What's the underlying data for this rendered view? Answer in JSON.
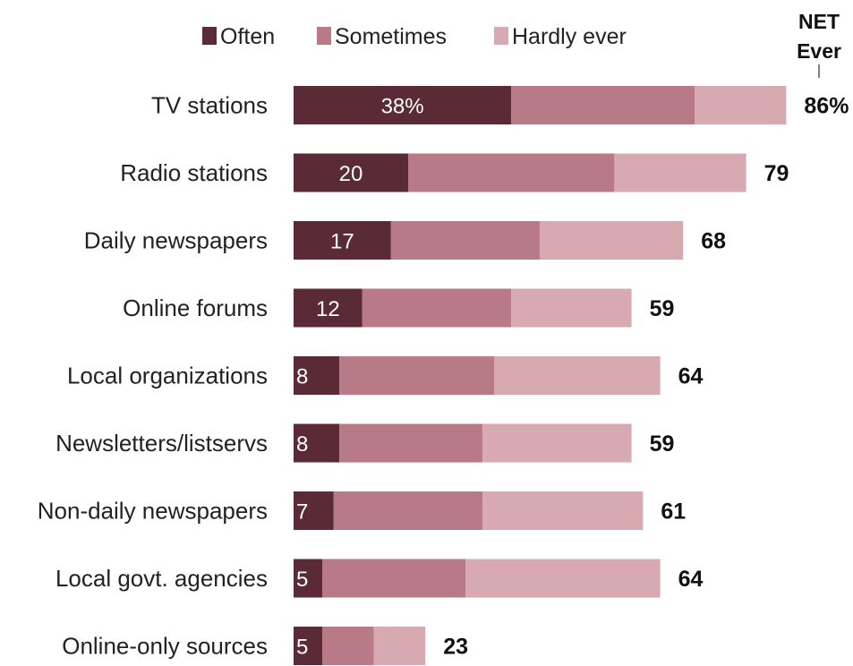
{
  "chart_data": {
    "type": "bar",
    "orientation": "horizontal",
    "stacked": true,
    "categories": [
      "TV stations",
      "Radio stations",
      "Daily newspapers",
      "Online forums",
      "Local organizations",
      "Newsletters/listservs",
      "Non-daily newspapers",
      "Local govt. agencies",
      "Online-only sources"
    ],
    "series": [
      {
        "name": "Often",
        "color": "#5b2a37",
        "values": [
          38,
          20,
          17,
          12,
          8,
          8,
          7,
          5,
          5
        ]
      },
      {
        "name": "Sometimes",
        "color": "#b87a86",
        "values": [
          32,
          36,
          26,
          26,
          27,
          25,
          26,
          25,
          9
        ]
      },
      {
        "name": "Hardly ever",
        "color": "#d7a9b1",
        "values": [
          16,
          23,
          25,
          21,
          29,
          26,
          28,
          34,
          9
        ]
      }
    ],
    "bar_labels": [
      "38%",
      "20",
      "17",
      "12",
      "8",
      "8",
      "7",
      "5",
      "5"
    ],
    "net": {
      "title_line1": "NET",
      "title_line2": "Ever",
      "values": [
        86,
        79,
        68,
        59,
        64,
        59,
        61,
        64,
        23
      ],
      "labels": [
        "86%",
        "79",
        "68",
        "59",
        "64",
        "59",
        "61",
        "64",
        "23"
      ]
    },
    "legend_position": "top",
    "grid": false
  }
}
